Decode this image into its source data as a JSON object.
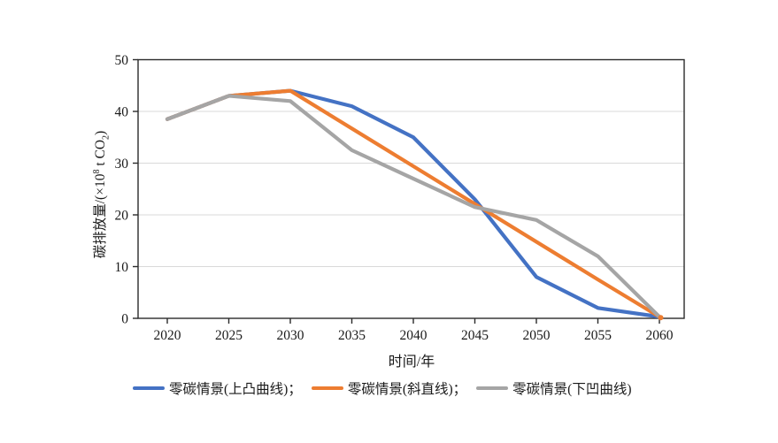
{
  "colors": {
    "background": "#FFFFFF",
    "axis": "#2B2B2B",
    "grid": "#D9D9D9",
    "text": "#1A1A1A",
    "series_blue": "#4472C4",
    "series_orange": "#ED7D31",
    "series_gray": "#A5A5A5"
  },
  "chart_data": {
    "type": "line",
    "title": "",
    "xlabel": "时间/年",
    "ylabel": "碳排放量/(×10⁸ t CO₂)",
    "ylabel_parts": {
      "prefix": "碳排放量/(×10",
      "sup": "8",
      "mid": " t CO",
      "sub": "2",
      "suffix": ")"
    },
    "x": [
      2020,
      2025,
      2030,
      2035,
      2040,
      2045,
      2050,
      2055,
      2060
    ],
    "x_ticks": [
      2020,
      2025,
      2030,
      2035,
      2040,
      2045,
      2050,
      2055,
      2060
    ],
    "y_ticks": [
      0,
      10,
      20,
      30,
      40,
      50
    ],
    "xlim": [
      2020,
      2060
    ],
    "ylim": [
      0,
      50
    ],
    "grid": "horizontal",
    "legend_position": "bottom",
    "series": [
      {
        "name": "零碳情景(上凸曲线)；",
        "color": "#4472C4",
        "values": [
          38.5,
          43,
          44,
          41,
          35,
          23,
          8,
          2,
          0.3
        ]
      },
      {
        "name": "零碳情景(斜直线)；",
        "color": "#ED7D31",
        "values": [
          38.5,
          43,
          44,
          36.7,
          29.4,
          22.1,
          14.8,
          7.5,
          0.3
        ]
      },
      {
        "name": "零碳情景(下凹曲线)",
        "color": "#A5A5A5",
        "values": [
          38.5,
          43,
          42,
          32.5,
          27,
          21.5,
          19,
          12,
          0.3
        ]
      }
    ],
    "end_marker": {
      "x": 2060,
      "y": 0.3,
      "color": "#ED7D31"
    }
  }
}
